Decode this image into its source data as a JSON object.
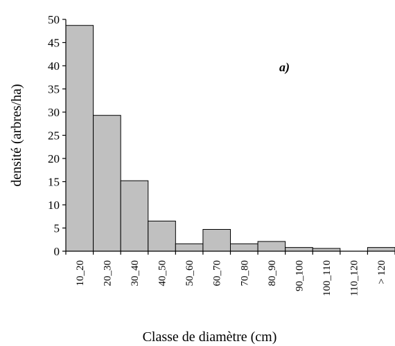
{
  "chart_data": {
    "type": "bar",
    "title": "",
    "xlabel": "Classe de diamètre (cm)",
    "ylabel": "densité (arbres/ha)",
    "ylim": [
      0,
      50
    ],
    "yticks": [
      0,
      5,
      10,
      15,
      20,
      25,
      30,
      35,
      40,
      45,
      50
    ],
    "grid": false,
    "bar_color": "#c0c0c0",
    "categories": [
      "10_20",
      "20_30",
      "30_40",
      "40_50",
      "50_60",
      "60_70",
      "70_80",
      "80_90",
      "90_100",
      "100_110",
      "110_120",
      "> 120"
    ],
    "values": [
      48.7,
      29.3,
      15.2,
      6.5,
      1.6,
      4.7,
      1.6,
      2.1,
      0.8,
      0.6,
      0.0,
      0.8
    ],
    "annotations": [
      {
        "text": "a)"
      }
    ]
  }
}
